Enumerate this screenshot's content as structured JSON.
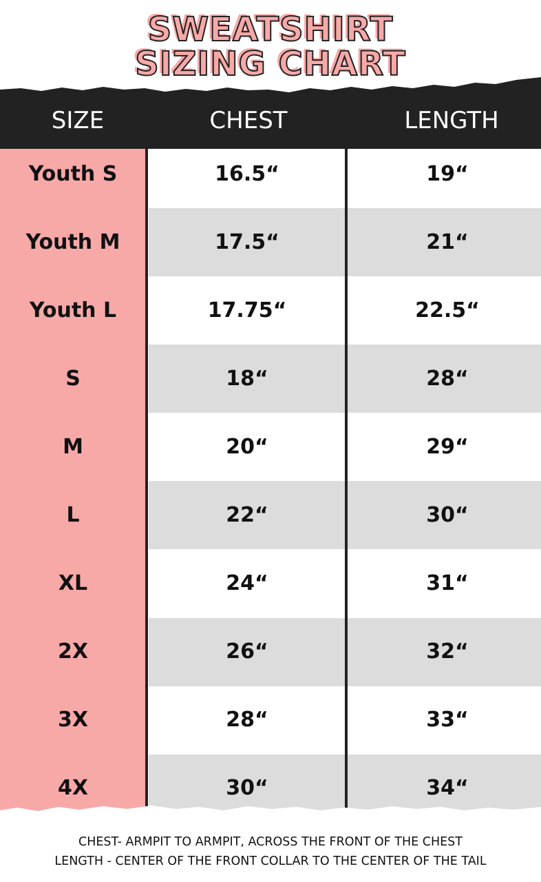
{
  "title": {
    "line1": "SWEATSHIRT",
    "line2": "SIZING CHART"
  },
  "colors": {
    "accent_pink": "#f7a9a8",
    "header_dark": "#222222",
    "stripe_grey": "#dcdcdc"
  },
  "table": {
    "headers": [
      "SIZE",
      "CHEST",
      "LENGTH"
    ],
    "rows": [
      {
        "size": "Youth S",
        "chest": "16.5“",
        "length": "19“"
      },
      {
        "size": "Youth M",
        "chest": "17.5“",
        "length": "21“"
      },
      {
        "size": "Youth L",
        "chest": "17.75“",
        "length": "22.5“"
      },
      {
        "size": "S",
        "chest": "18“",
        "length": "28“"
      },
      {
        "size": "M",
        "chest": "20“",
        "length": "29“"
      },
      {
        "size": "L",
        "chest": "22“",
        "length": "30“"
      },
      {
        "size": "XL",
        "chest": "24“",
        "length": "31“"
      },
      {
        "size": "2X",
        "chest": "26“",
        "length": "32“"
      },
      {
        "size": "3X",
        "chest": "28“",
        "length": "33“"
      },
      {
        "size": "4X",
        "chest": "30“",
        "length": "34“"
      }
    ]
  },
  "notes": [
    "CHEST- ARMPIT TO ARMPIT, ACROSS THE FRONT OF THE CHEST",
    "LENGTH - CENTER OF THE FRONT COLLAR TO THE CENTER OF THE TAIL"
  ]
}
